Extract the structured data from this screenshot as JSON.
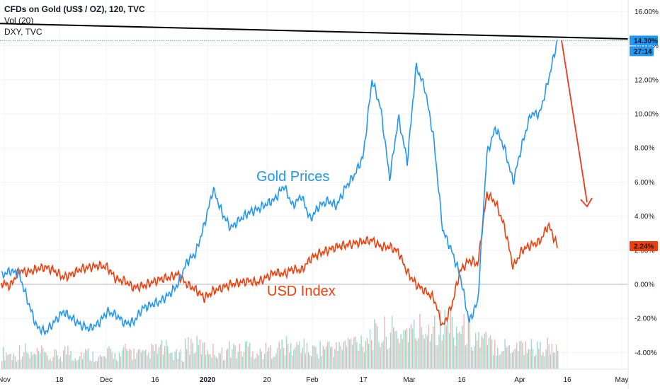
{
  "header": {
    "symbol": "CFDs on Gold (US$ / OZ), 120, TVC",
    "volume": "Vol (20)",
    "compare": "DXY, TVC"
  },
  "price_badges": {
    "gold_pct": "14.30%",
    "countdown": "27:14",
    "dxy_pct": "2.24%"
  },
  "annotations": {
    "gold": "Gold Prices",
    "usd": "USD Index"
  },
  "colors": {
    "gold": "#2196f3",
    "usd": "#f23d0a",
    "trendline": "#000000",
    "arrow": "#f2361d",
    "badge_gold": "#2196f3",
    "badge_usd": "#f23d0a",
    "vol_up": "#8fd0c3",
    "vol_down": "#f5a3a3"
  },
  "chart_data": {
    "type": "line",
    "title": "CFDs on Gold (US$ / OZ), 120, TVC",
    "ylabel": "",
    "xlabel": "",
    "ylim": [
      -5,
      17
    ],
    "y_ticks": [
      "16.00%",
      "14.00%",
      "12.00%",
      "10.00%",
      "8.00%",
      "6.00%",
      "4.00%",
      "2.00%",
      "0.00%",
      "-2.00%",
      "-4.00%"
    ],
    "x_ticks": [
      "Nov",
      "18",
      "Dec",
      "16",
      "2020",
      "20",
      "Feb",
      "17",
      "Mar",
      "16",
      "Apr",
      "16",
      "May"
    ],
    "grid": true,
    "series": [
      {
        "name": "CFDs on Gold",
        "values": [
          0.5,
          0.8,
          0.6,
          -1.0,
          -2.5,
          -2.8,
          -2.2,
          -1.6,
          -2.0,
          -2.4,
          -2.6,
          -2.3,
          -1.6,
          -1.8,
          -2.3,
          -2.2,
          -1.4,
          -1.2,
          -1.0,
          -0.6,
          0.0,
          1.3,
          1.8,
          3.5,
          5.6,
          4.2,
          3.3,
          3.8,
          4.2,
          4.4,
          4.7,
          5.0,
          5.8,
          4.6,
          5.2,
          3.8,
          4.6,
          4.9,
          4.6,
          5.7,
          6.4,
          7.5,
          12.0,
          10.3,
          6.2,
          9.8,
          7.2,
          12.8,
          11.5,
          8.5,
          3.2,
          2.0,
          0.5,
          -2.2,
          -1.0,
          7.6,
          9.2,
          8.0,
          6.0,
          8.2,
          10.0,
          10.0,
          12.0,
          14.3
        ]
      },
      {
        "name": "DXY",
        "values": [
          0.1,
          -0.1,
          0.8,
          0.7,
          0.9,
          1.0,
          0.8,
          0.4,
          0.6,
          0.9,
          1.0,
          1.1,
          1.0,
          0.3,
          0.2,
          -0.2,
          -0.1,
          0.1,
          0.3,
          0.4,
          0.6,
          0.0,
          -0.3,
          -0.8,
          -0.4,
          -0.2,
          0.0,
          0.1,
          0.2,
          0.1,
          0.4,
          0.7,
          0.6,
          0.9,
          0.8,
          1.5,
          1.8,
          2.0,
          2.2,
          2.3,
          2.4,
          2.5,
          2.6,
          2.2,
          2.2,
          1.9,
          0.7,
          0.0,
          -0.4,
          -0.8,
          -2.5,
          -1.3,
          0.8,
          1.4,
          1.2,
          5.3,
          4.8,
          3.4,
          1.0,
          2.0,
          2.3,
          2.5,
          3.5,
          2.24
        ]
      }
    ],
    "volume": {
      "name": "Vol (20)",
      "values": [
        0.35,
        0.3,
        0.4,
        0.3,
        0.35,
        0.25,
        0.3,
        0.4,
        0.3,
        0.35,
        0.3,
        0.25,
        0.35,
        0.3,
        0.4,
        0.35,
        0.3,
        0.4,
        0.45,
        0.35,
        0.3,
        0.55,
        0.5,
        0.45,
        0.4,
        0.35,
        0.45,
        0.4,
        0.5,
        0.35,
        0.4,
        0.45,
        0.5,
        0.45,
        0.55,
        0.4,
        0.45,
        0.5,
        0.45,
        0.55,
        0.6,
        0.65,
        0.75,
        0.7,
        0.8,
        0.75,
        0.85,
        0.8,
        0.9,
        1.0,
        0.95,
        1.0,
        0.9,
        0.85,
        0.7,
        0.6,
        0.55,
        0.5,
        0.5,
        0.55,
        0.5,
        0.45,
        0.5,
        0.4
      ]
    },
    "trendline": {
      "from": [
        0,
        15.3
      ],
      "to": [
        1,
        14.4
      ]
    }
  }
}
